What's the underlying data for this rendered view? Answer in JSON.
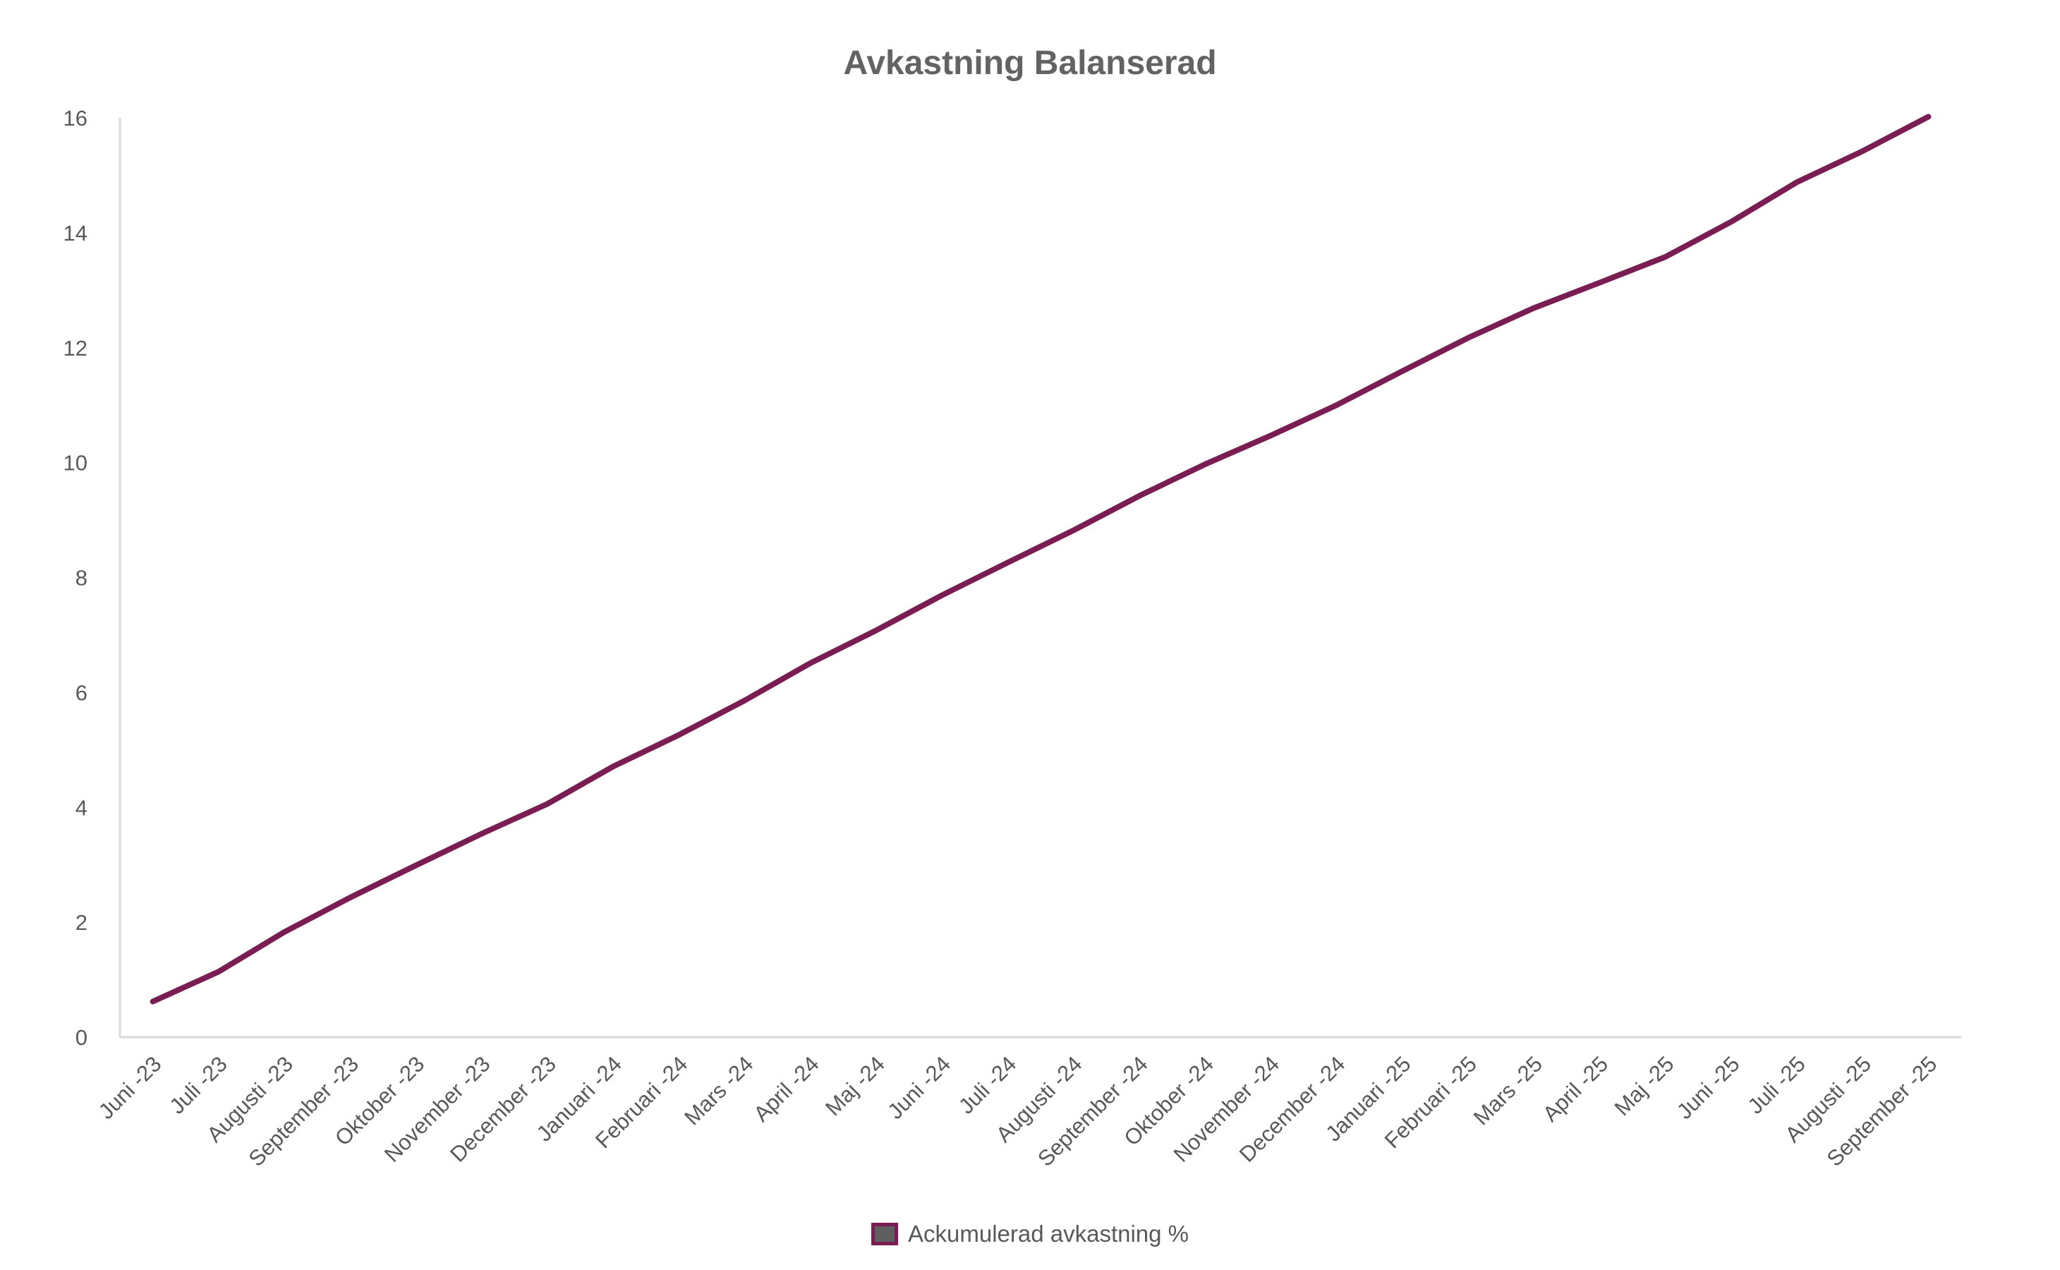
{
  "chart_data": {
    "type": "line",
    "title": "Avkastning Balanserad",
    "xlabel": "",
    "ylabel": "",
    "ylim": [
      0,
      16
    ],
    "yticks": [
      0,
      2,
      4,
      6,
      8,
      10,
      12,
      14,
      16
    ],
    "grid": false,
    "legend_position": "bottom",
    "categories": [
      "Juni -23",
      "Juli -23",
      "Augusti -23",
      "September -23",
      "Oktober -23",
      "November -23",
      "December -23",
      "Januari -24",
      "Februari -24",
      "Mars -24",
      "April -24",
      "Maj -24",
      "Juni -24",
      "Juli -24",
      "Augusti -24",
      "September -24",
      "Oktober -24",
      "November -24",
      "December -24",
      "Januari -25",
      "Februari -25",
      "Mars -25",
      "April -25",
      "Maj -25",
      "Juni -25",
      "Juli -25",
      "Augusti -25",
      "September -25"
    ],
    "series": [
      {
        "name": "Ackumulerad avkastning %",
        "color": "#7a1d52",
        "values": [
          0.62,
          1.14,
          1.83,
          2.43,
          2.99,
          3.54,
          4.06,
          4.71,
          5.26,
          5.86,
          6.51,
          7.08,
          7.69,
          8.26,
          8.82,
          9.42,
          9.97,
          10.47,
          11.0,
          11.59,
          12.17,
          12.69,
          13.13,
          13.58,
          14.19,
          14.88,
          15.42,
          16.02
        ]
      }
    ]
  }
}
